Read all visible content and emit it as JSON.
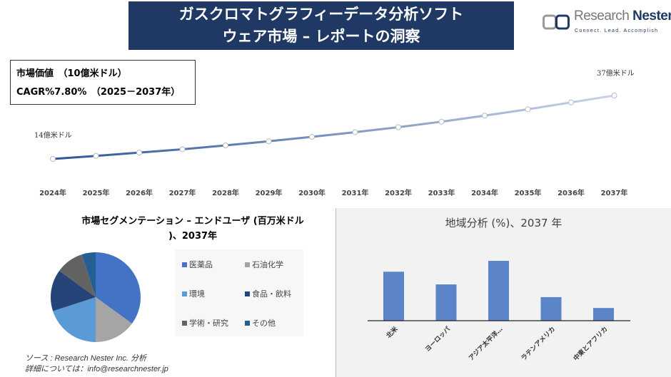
{
  "header": {
    "title_line1": "ガスクロマトグラフィーデータ分析ソフト",
    "title_line2": "ウェア市場 – レポートの洞察"
  },
  "logo": {
    "name_light": "Research ",
    "name_bold": "Nester",
    "tagline": "Connect. Lead. Accomplish"
  },
  "info": {
    "market_value": "市場価値　（10億米ドル）",
    "cagr": "CAGR%7.80%　（2025－2037年）"
  },
  "chart_data": [
    {
      "type": "line",
      "categories": [
        "2024年",
        "2025年",
        "2026年",
        "2027年",
        "2028年",
        "2029年",
        "2030年",
        "2031年",
        "2032年",
        "2033年",
        "2034年",
        "2035年",
        "2036年",
        "2037年"
      ],
      "values": [
        14,
        15.1,
        16.3,
        17.5,
        18.9,
        20.4,
        22.0,
        23.7,
        25.5,
        27.5,
        29.7,
        32.0,
        34.5,
        37
      ],
      "annotations": {
        "start": "14億米ドル",
        "end": "37億米ドル"
      },
      "colors": {
        "start": "#2f5597",
        "end": "#c9d3e6"
      }
    },
    {
      "type": "pie",
      "title": "市場セグメンテーション – エンドユーザ (百万米ドル)、2037年",
      "title_line1": "市場セグメンテーション – エンドユーザ (百万米ドル",
      "title_line2": ")、2037年",
      "categories": [
        "医薬品",
        "石油化学",
        "環境",
        "食品・飲料",
        "学術・研究",
        "その他"
      ],
      "values": [
        35,
        15,
        20,
        15,
        10,
        5
      ],
      "colors": [
        "#4472c4",
        "#a5a5a5",
        "#5b9bd5",
        "#264478",
        "#636363",
        "#255e91"
      ]
    },
    {
      "type": "bar",
      "title": "地域分析 (%)、2037 年",
      "categories": [
        "北米",
        "ヨーロッパ",
        "アジア太平洋…",
        "ラテンアメリカ",
        "中東とアフリカ"
      ],
      "values": [
        27,
        20,
        33,
        13,
        7
      ],
      "color": "#5b84c9"
    }
  ],
  "source": {
    "line1": "ソース : Research Nester Inc. 分析",
    "line2": "詳細については：info@researchnester.jp"
  }
}
